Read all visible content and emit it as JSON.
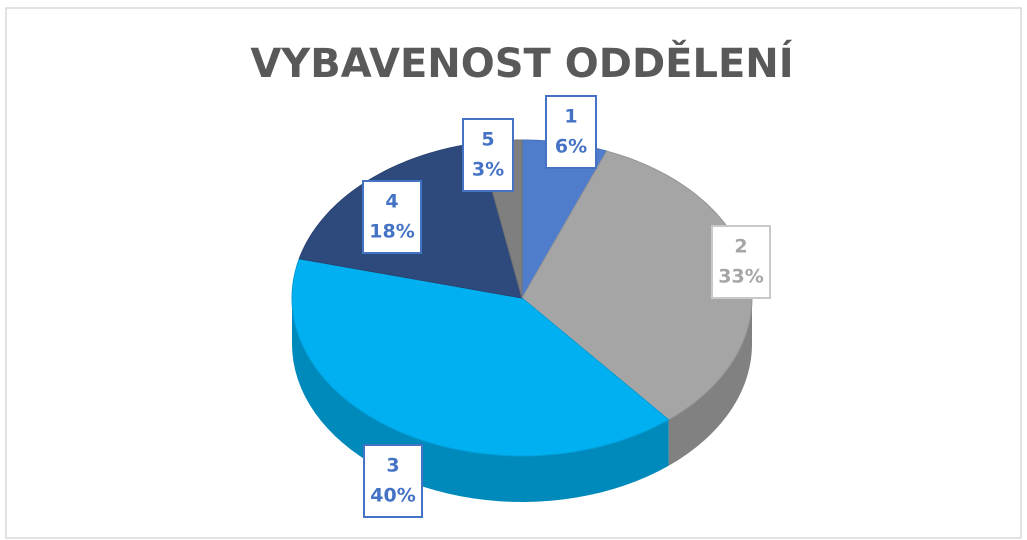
{
  "chart_data": {
    "type": "pie",
    "title": "VYBAVENOST ODDĚLENÍ",
    "categories": [
      "1",
      "2",
      "3",
      "4",
      "5"
    ],
    "values": [
      6,
      33,
      40,
      18,
      3
    ],
    "value_labels": [
      "6%",
      "33%",
      "40%",
      "18%",
      "3%"
    ],
    "colors": [
      "#4f7dcb",
      "#a5a5a5",
      "#00b0f0",
      "#2e4a7d",
      "#7f7f7f"
    ]
  }
}
